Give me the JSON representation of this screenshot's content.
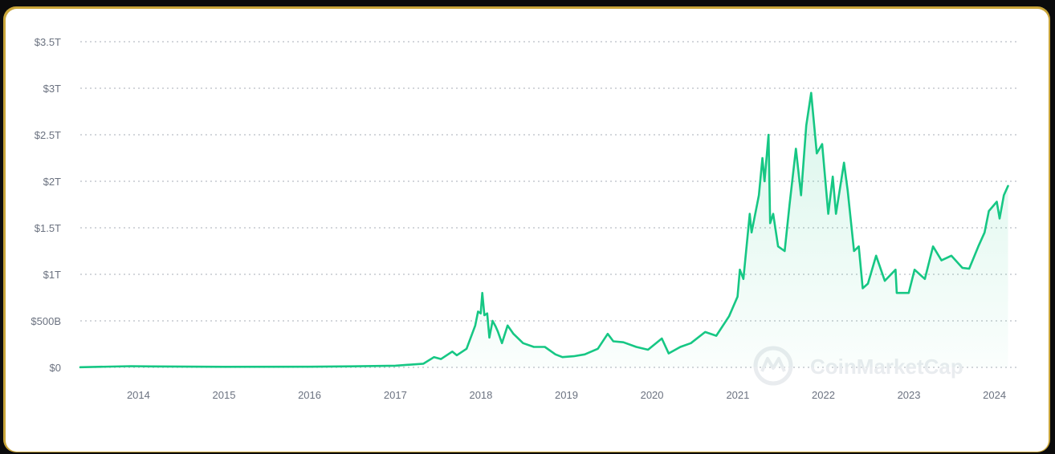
{
  "colors": {
    "line": "#16c784",
    "fill_top": "#16c784",
    "grid": "#b9bec5",
    "tick": "#6b7280",
    "background": "#ffffff",
    "frame": "#c9a53a"
  },
  "watermark": {
    "text": "CoinMarketCap",
    "icon": "coinmarketcap-logo-icon"
  },
  "chart_data": {
    "type": "area",
    "title": "",
    "xlabel": "",
    "ylabel": "",
    "ylim": [
      0,
      3.5
    ],
    "xlim": [
      "2013-04-28",
      "2024-03-04"
    ],
    "grid": true,
    "legend": "none",
    "y_ticks": [
      {
        "value": 0,
        "label": "$0"
      },
      {
        "value": 0.5,
        "label": "$500B"
      },
      {
        "value": 1,
        "label": "$1T"
      },
      {
        "value": 1.5,
        "label": "$1.5T"
      },
      {
        "value": 2,
        "label": "$2T"
      },
      {
        "value": 2.5,
        "label": "$2.5T"
      },
      {
        "value": 3,
        "label": "$3T"
      },
      {
        "value": 3.5,
        "label": "$3.5T"
      }
    ],
    "x_ticks": [
      {
        "value": "2014-01-01",
        "label": "2014"
      },
      {
        "value": "2015-01-01",
        "label": "2015"
      },
      {
        "value": "2016-01-01",
        "label": "2016"
      },
      {
        "value": "2017-01-01",
        "label": "2017"
      },
      {
        "value": "2018-01-01",
        "label": "2018"
      },
      {
        "value": "2019-01-01",
        "label": "2019"
      },
      {
        "value": "2020-01-01",
        "label": "2020"
      },
      {
        "value": "2021-01-01",
        "label": "2021"
      },
      {
        "value": "2022-01-01",
        "label": "2022"
      },
      {
        "value": "2023-01-01",
        "label": "2023"
      },
      {
        "value": "2024-01-01",
        "label": "2024"
      }
    ],
    "series": [
      {
        "unit": "trillion USD",
        "points": [
          [
            "2013-04-28",
            0.0015
          ],
          [
            "2013-11-30",
            0.013
          ],
          [
            "2014-03-01",
            0.01
          ],
          [
            "2015-01-01",
            0.006
          ],
          [
            "2016-01-01",
            0.007
          ],
          [
            "2016-07-01",
            0.011
          ],
          [
            "2017-01-01",
            0.018
          ],
          [
            "2017-05-01",
            0.04
          ],
          [
            "2017-06-15",
            0.11
          ],
          [
            "2017-07-15",
            0.09
          ],
          [
            "2017-09-01",
            0.17
          ],
          [
            "2017-09-20",
            0.13
          ],
          [
            "2017-11-01",
            0.2
          ],
          [
            "2017-12-08",
            0.45
          ],
          [
            "2017-12-20",
            0.6
          ],
          [
            "2017-12-31",
            0.58
          ],
          [
            "2018-01-07",
            0.8
          ],
          [
            "2018-01-16",
            0.56
          ],
          [
            "2018-01-28",
            0.58
          ],
          [
            "2018-02-06",
            0.32
          ],
          [
            "2018-02-20",
            0.5
          ],
          [
            "2018-03-05",
            0.44
          ],
          [
            "2018-03-15",
            0.38
          ],
          [
            "2018-04-01",
            0.26
          ],
          [
            "2018-04-25",
            0.45
          ],
          [
            "2018-05-20",
            0.36
          ],
          [
            "2018-06-30",
            0.26
          ],
          [
            "2018-08-15",
            0.22
          ],
          [
            "2018-10-01",
            0.22
          ],
          [
            "2018-11-15",
            0.14
          ],
          [
            "2018-12-15",
            0.11
          ],
          [
            "2019-02-01",
            0.12
          ],
          [
            "2019-03-20",
            0.14
          ],
          [
            "2019-05-15",
            0.2
          ],
          [
            "2019-06-26",
            0.36
          ],
          [
            "2019-07-20",
            0.28
          ],
          [
            "2019-09-01",
            0.27
          ],
          [
            "2019-10-26",
            0.22
          ],
          [
            "2019-12-15",
            0.19
          ],
          [
            "2020-02-12",
            0.31
          ],
          [
            "2020-03-12",
            0.15
          ],
          [
            "2020-05-01",
            0.22
          ],
          [
            "2020-06-15",
            0.26
          ],
          [
            "2020-08-15",
            0.38
          ],
          [
            "2020-10-01",
            0.34
          ],
          [
            "2020-11-25",
            0.55
          ],
          [
            "2020-12-31",
            0.76
          ],
          [
            "2021-01-10",
            1.05
          ],
          [
            "2021-01-25",
            0.95
          ],
          [
            "2021-02-21",
            1.65
          ],
          [
            "2021-03-01",
            1.45
          ],
          [
            "2021-04-01",
            1.85
          ],
          [
            "2021-04-16",
            2.25
          ],
          [
            "2021-04-25",
            2.0
          ],
          [
            "2021-05-12",
            2.5
          ],
          [
            "2021-05-19",
            1.55
          ],
          [
            "2021-06-01",
            1.65
          ],
          [
            "2021-06-22",
            1.3
          ],
          [
            "2021-07-20",
            1.25
          ],
          [
            "2021-08-10",
            1.75
          ],
          [
            "2021-09-06",
            2.35
          ],
          [
            "2021-09-28",
            1.85
          ],
          [
            "2021-10-20",
            2.6
          ],
          [
            "2021-11-10",
            2.95
          ],
          [
            "2021-12-04",
            2.3
          ],
          [
            "2021-12-27",
            2.4
          ],
          [
            "2022-01-22",
            1.65
          ],
          [
            "2022-02-10",
            2.05
          ],
          [
            "2022-02-24",
            1.65
          ],
          [
            "2022-03-30",
            2.2
          ],
          [
            "2022-04-15",
            1.9
          ],
          [
            "2022-05-12",
            1.25
          ],
          [
            "2022-06-01",
            1.3
          ],
          [
            "2022-06-18",
            0.85
          ],
          [
            "2022-07-10",
            0.9
          ],
          [
            "2022-08-14",
            1.2
          ],
          [
            "2022-09-20",
            0.93
          ],
          [
            "2022-11-05",
            1.05
          ],
          [
            "2022-11-10",
            0.8
          ],
          [
            "2022-12-31",
            0.8
          ],
          [
            "2023-01-25",
            1.05
          ],
          [
            "2023-03-10",
            0.95
          ],
          [
            "2023-04-14",
            1.3
          ],
          [
            "2023-05-20",
            1.15
          ],
          [
            "2023-07-01",
            1.2
          ],
          [
            "2023-08-17",
            1.07
          ],
          [
            "2023-09-15",
            1.06
          ],
          [
            "2023-10-24",
            1.3
          ],
          [
            "2023-11-20",
            1.45
          ],
          [
            "2023-12-08",
            1.68
          ],
          [
            "2024-01-11",
            1.78
          ],
          [
            "2024-01-23",
            1.6
          ],
          [
            "2024-02-10",
            1.85
          ],
          [
            "2024-02-28",
            1.95
          ]
        ]
      }
    ]
  }
}
